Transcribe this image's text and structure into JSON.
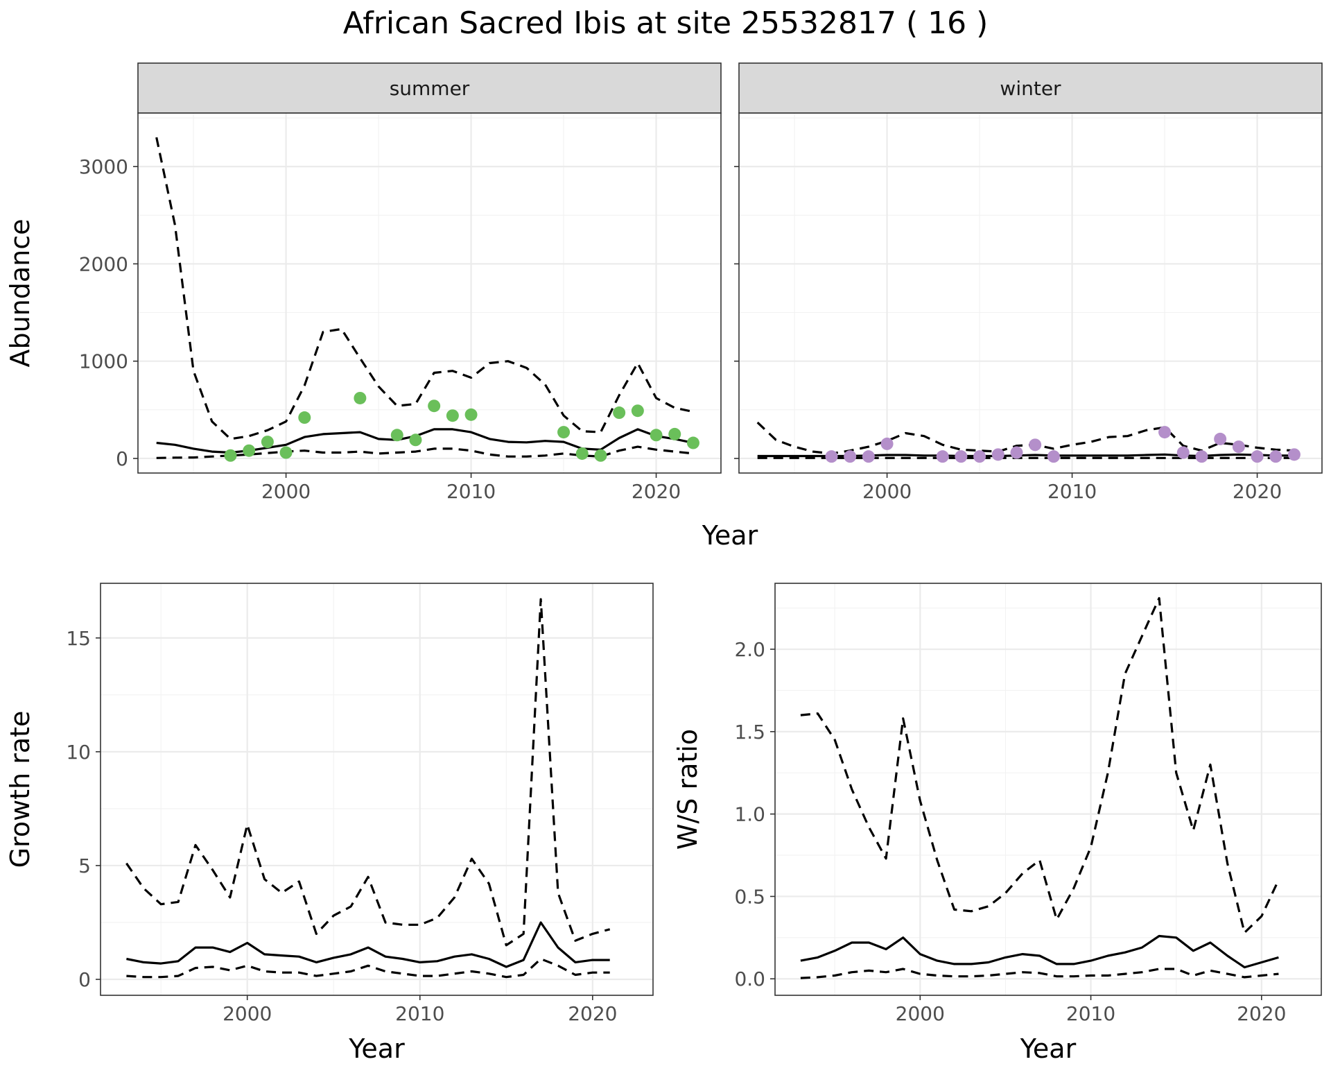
{
  "title": "African Sacred Ibis at site 25532817 ( 16 )",
  "colors": {
    "summer_points": "#6abf5a",
    "winter_points": "#b48fca",
    "lines": "#000000"
  },
  "chart_data": [
    {
      "id": "abundance-summer",
      "type": "line",
      "facet": "summer",
      "xlabel": "Year",
      "ylabel": "Abundance",
      "xlim": [
        1992,
        2023.5
      ],
      "ylim": [
        -150,
        3550
      ],
      "xticks": [
        2000,
        2010,
        2020
      ],
      "yticks": [
        0,
        1000,
        2000,
        3000
      ],
      "grid": true,
      "x": [
        1993,
        1994,
        1995,
        1996,
        1997,
        1998,
        1999,
        2000,
        2001,
        2002,
        2003,
        2004,
        2005,
        2006,
        2007,
        2008,
        2009,
        2010,
        2011,
        2012,
        2013,
        2014,
        2015,
        2016,
        2017,
        2018,
        2019,
        2020,
        2021,
        2022
      ],
      "series": [
        {
          "role": "estimate",
          "style": "solid",
          "values": [
            160,
            140,
            100,
            70,
            60,
            80,
            110,
            140,
            220,
            250,
            260,
            270,
            200,
            190,
            230,
            300,
            300,
            270,
            200,
            170,
            165,
            180,
            170,
            100,
            90,
            210,
            300,
            230,
            200,
            160
          ]
        },
        {
          "role": "upper",
          "style": "dashed",
          "values": [
            3300,
            2400,
            900,
            380,
            200,
            230,
            290,
            380,
            750,
            1300,
            1330,
            1030,
            740,
            540,
            560,
            880,
            900,
            830,
            980,
            1000,
            930,
            760,
            440,
            280,
            270,
            650,
            980,
            620,
            520,
            480
          ]
        },
        {
          "role": "lower",
          "style": "dashed",
          "values": [
            5,
            8,
            10,
            20,
            30,
            40,
            55,
            70,
            80,
            60,
            60,
            70,
            50,
            60,
            70,
            100,
            100,
            80,
            40,
            20,
            20,
            30,
            50,
            30,
            20,
            80,
            120,
            90,
            70,
            50
          ]
        }
      ],
      "points": {
        "x": [
          1997,
          1998,
          1999,
          2000,
          2001,
          2004,
          2006,
          2007,
          2008,
          2009,
          2010,
          2015,
          2016,
          2017,
          2018,
          2019,
          2020,
          2021,
          2022
        ],
        "y": [
          30,
          80,
          170,
          60,
          420,
          620,
          240,
          190,
          540,
          440,
          450,
          270,
          50,
          30,
          470,
          490,
          240,
          250,
          160
        ]
      }
    },
    {
      "id": "abundance-winter",
      "type": "line",
      "facet": "winter",
      "xlabel": "Year",
      "ylabel": "Abundance",
      "xlim": [
        1992,
        2023.5
      ],
      "ylim": [
        -150,
        3550
      ],
      "xticks": [
        2000,
        2010,
        2020
      ],
      "yticks": [
        0,
        1000,
        2000,
        3000
      ],
      "grid": true,
      "x": [
        1993,
        1994,
        1995,
        1996,
        1997,
        1998,
        1999,
        2000,
        2001,
        2002,
        2003,
        2004,
        2005,
        2006,
        2007,
        2008,
        2009,
        2010,
        2011,
        2012,
        2013,
        2014,
        2015,
        2016,
        2017,
        2018,
        2019,
        2020,
        2021,
        2022
      ],
      "series": [
        {
          "role": "estimate",
          "style": "solid",
          "values": [
            25,
            25,
            25,
            25,
            25,
            25,
            30,
            35,
            35,
            30,
            30,
            25,
            25,
            25,
            30,
            35,
            30,
            30,
            30,
            30,
            30,
            35,
            40,
            30,
            25,
            35,
            40,
            35,
            30,
            30
          ]
        },
        {
          "role": "upper",
          "style": "dashed",
          "values": [
            370,
            190,
            120,
            70,
            50,
            80,
            120,
            180,
            260,
            230,
            140,
            90,
            80,
            70,
            130,
            140,
            100,
            140,
            170,
            220,
            230,
            290,
            320,
            130,
            80,
            160,
            140,
            110,
            90,
            80
          ]
        },
        {
          "role": "lower",
          "style": "dashed",
          "values": [
            5,
            5,
            5,
            5,
            5,
            5,
            5,
            5,
            5,
            5,
            5,
            5,
            5,
            5,
            5,
            5,
            5,
            5,
            5,
            5,
            5,
            5,
            5,
            5,
            5,
            5,
            5,
            5,
            5,
            5
          ]
        }
      ],
      "points": {
        "x": [
          1997,
          1998,
          1999,
          2000,
          2003,
          2004,
          2005,
          2006,
          2007,
          2008,
          2009,
          2015,
          2016,
          2017,
          2018,
          2019,
          2020,
          2021,
          2022
        ],
        "y": [
          20,
          20,
          20,
          150,
          20,
          20,
          20,
          40,
          60,
          140,
          20,
          270,
          60,
          20,
          200,
          120,
          20,
          20,
          40
        ]
      }
    },
    {
      "id": "growth-rate",
      "type": "line",
      "xlabel": "Year",
      "ylabel": "Growth rate",
      "xlim": [
        1991.5,
        2023.5
      ],
      "ylim": [
        -0.7,
        17.4
      ],
      "xticks": [
        2000,
        2010,
        2020
      ],
      "yticks": [
        0,
        5,
        10,
        15
      ],
      "grid": true,
      "x": [
        1993,
        1994,
        1995,
        1996,
        1997,
        1998,
        1999,
        2000,
        2001,
        2002,
        2003,
        2004,
        2005,
        2006,
        2007,
        2008,
        2009,
        2010,
        2011,
        2012,
        2013,
        2014,
        2015,
        2016,
        2017,
        2018,
        2019,
        2020,
        2021
      ],
      "series": [
        {
          "role": "estimate",
          "style": "solid",
          "values": [
            0.9,
            0.75,
            0.7,
            0.8,
            1.4,
            1.4,
            1.2,
            1.6,
            1.1,
            1.05,
            1.0,
            0.75,
            0.95,
            1.1,
            1.4,
            1.0,
            0.9,
            0.75,
            0.8,
            1.0,
            1.1,
            0.9,
            0.55,
            0.85,
            2.5,
            1.4,
            0.75,
            0.85,
            0.85
          ]
        },
        {
          "role": "upper",
          "style": "dashed",
          "values": [
            5.1,
            4.0,
            3.3,
            3.4,
            5.9,
            4.8,
            3.6,
            6.8,
            4.4,
            3.8,
            4.3,
            2.0,
            2.8,
            3.2,
            4.5,
            2.5,
            2.4,
            2.4,
            2.7,
            3.6,
            5.3,
            4.2,
            1.5,
            2.0,
            16.7,
            3.8,
            1.7,
            2.0,
            2.2
          ]
        },
        {
          "role": "lower",
          "style": "dashed",
          "values": [
            0.15,
            0.1,
            0.1,
            0.15,
            0.5,
            0.55,
            0.4,
            0.6,
            0.35,
            0.3,
            0.3,
            0.15,
            0.25,
            0.35,
            0.6,
            0.35,
            0.25,
            0.15,
            0.15,
            0.25,
            0.35,
            0.25,
            0.1,
            0.2,
            0.9,
            0.6,
            0.2,
            0.3,
            0.3
          ]
        }
      ]
    },
    {
      "id": "ws-ratio",
      "type": "line",
      "xlabel": "Year",
      "ylabel": "W/S ratio",
      "xlim": [
        1991.5,
        2023.5
      ],
      "ylim": [
        -0.1,
        2.4
      ],
      "xticks": [
        2000,
        2010,
        2020
      ],
      "yticks": [
        0.0,
        0.5,
        1.0,
        1.5,
        2.0
      ],
      "ytick_labels": [
        "0.0",
        "0.5",
        "1.0",
        "1.5",
        "2.0"
      ],
      "grid": true,
      "x": [
        1993,
        1994,
        1995,
        1996,
        1997,
        1998,
        1999,
        2000,
        2001,
        2002,
        2003,
        2004,
        2005,
        2006,
        2007,
        2008,
        2009,
        2010,
        2011,
        2012,
        2013,
        2014,
        2015,
        2016,
        2017,
        2018,
        2019,
        2020,
        2021
      ],
      "series": [
        {
          "role": "estimate",
          "style": "solid",
          "values": [
            0.11,
            0.13,
            0.17,
            0.22,
            0.22,
            0.18,
            0.25,
            0.15,
            0.11,
            0.09,
            0.09,
            0.1,
            0.13,
            0.15,
            0.14,
            0.09,
            0.09,
            0.11,
            0.14,
            0.16,
            0.19,
            0.26,
            0.25,
            0.17,
            0.22,
            0.14,
            0.07,
            0.1,
            0.13
          ]
        },
        {
          "role": "upper",
          "style": "dashed",
          "values": [
            1.6,
            1.61,
            1.45,
            1.15,
            0.92,
            0.73,
            1.58,
            1.08,
            0.72,
            0.42,
            0.41,
            0.44,
            0.52,
            0.64,
            0.72,
            0.36,
            0.55,
            0.8,
            1.25,
            1.85,
            2.08,
            2.31,
            1.25,
            0.9,
            1.3,
            0.7,
            0.28,
            0.38,
            0.6
          ]
        },
        {
          "role": "lower",
          "style": "dashed",
          "values": [
            0.005,
            0.01,
            0.02,
            0.04,
            0.05,
            0.04,
            0.06,
            0.03,
            0.02,
            0.015,
            0.015,
            0.02,
            0.03,
            0.04,
            0.035,
            0.015,
            0.015,
            0.02,
            0.02,
            0.03,
            0.04,
            0.06,
            0.06,
            0.02,
            0.05,
            0.03,
            0.01,
            0.02,
            0.03
          ]
        }
      ]
    }
  ]
}
